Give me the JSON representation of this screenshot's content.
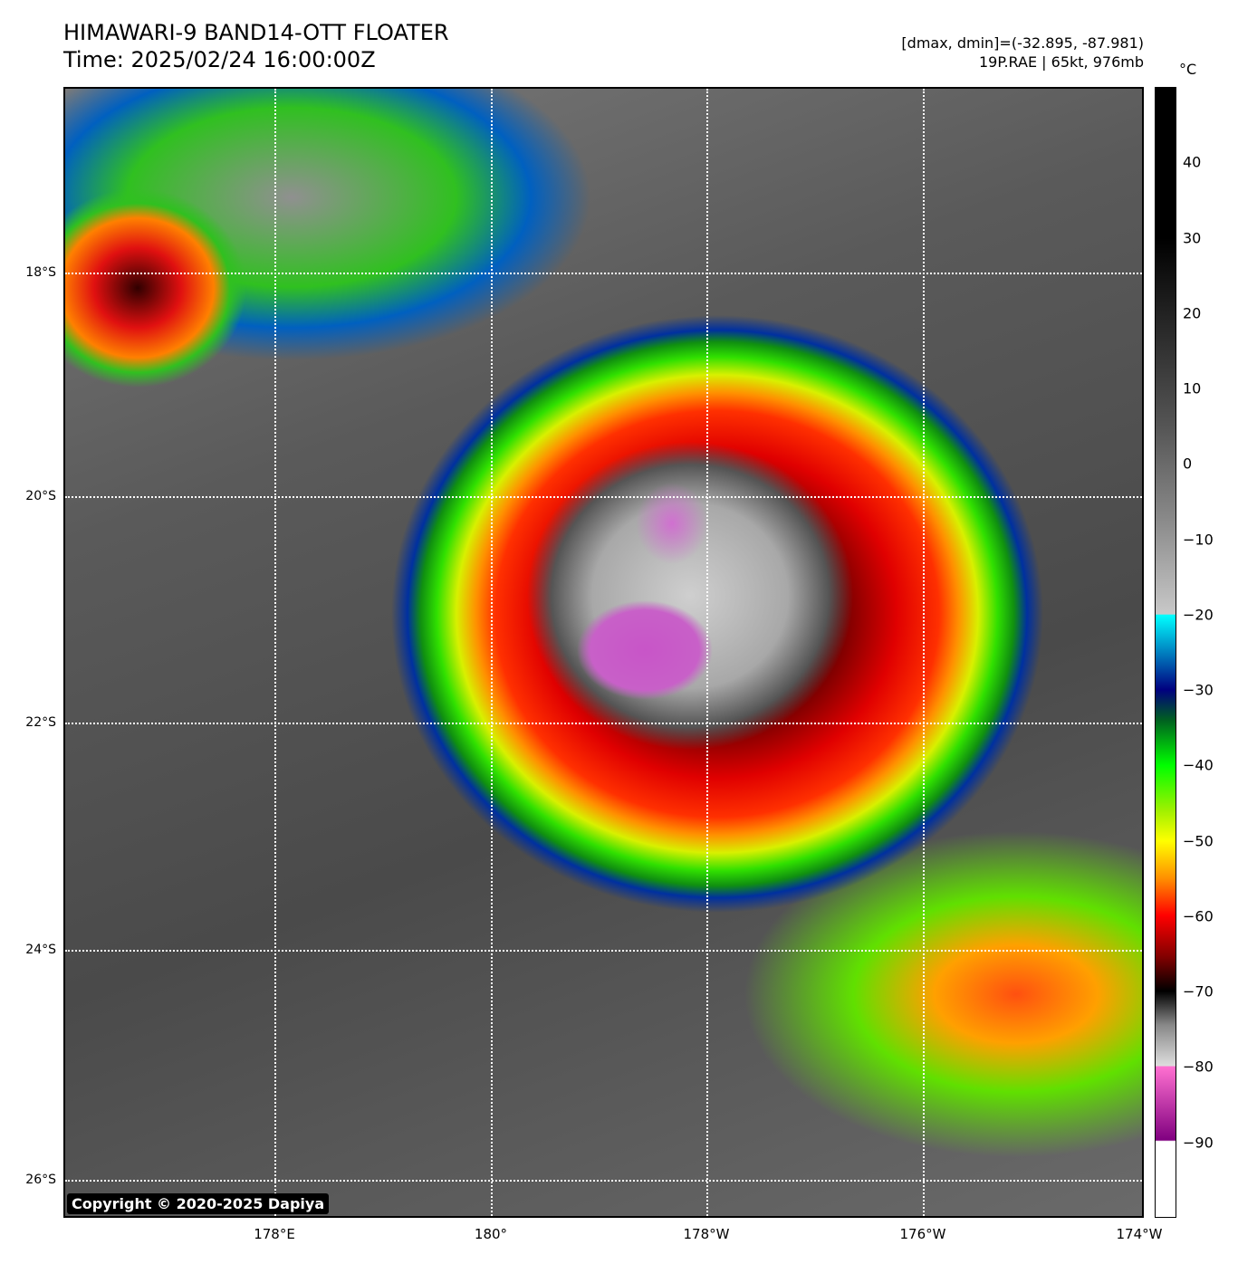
{
  "header": {
    "title": "HIMAWARI-9 BAND14-OTT FLOATER",
    "time": "Time: 2025/02/24 16:00:00Z",
    "dminmax": "[dmax, dmin]=(-32.895, -87.981)",
    "storm": "19P.RAE | 65kt, 976mb"
  },
  "map": {
    "lat_labels": [
      "18°S",
      "20°S",
      "22°S",
      "24°S",
      "26°S"
    ],
    "lon_labels": [
      "178°E",
      "180°",
      "178°W",
      "176°W",
      "174°W"
    ],
    "copyright": "Copyright © 2020-2025 Dapiya",
    "gridlines": true
  },
  "colorbar": {
    "unit": "°C",
    "range": [
      -100,
      50
    ],
    "ticks": [
      "40",
      "30",
      "20",
      "10",
      "0",
      "−10",
      "−20",
      "−30",
      "−40",
      "−50",
      "−60",
      "−70",
      "−80",
      "−90"
    ]
  }
}
